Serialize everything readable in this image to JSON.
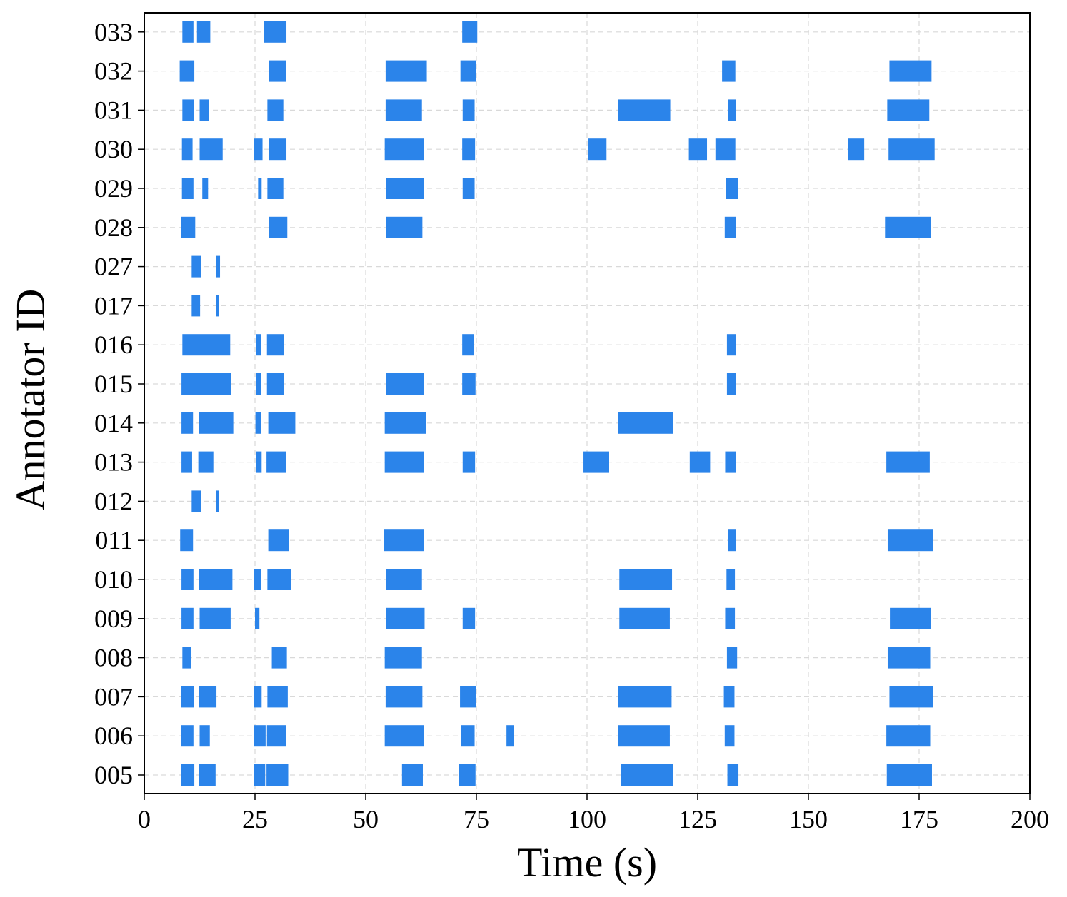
{
  "chart_data": {
    "type": "timeline",
    "xlabel": "Time (s)",
    "ylabel": "Annotator ID",
    "xlim": [
      0,
      200
    ],
    "xticks": [
      0,
      25,
      50,
      75,
      100,
      125,
      150,
      175,
      200
    ],
    "grid": true,
    "bar_color": "#2b84ea",
    "annotators": [
      {
        "id": "005",
        "segments": [
          [
            8.3,
            11.3
          ],
          [
            12.4,
            16.1
          ],
          [
            24.7,
            27.3
          ],
          [
            27.6,
            32.5
          ],
          [
            58.2,
            62.9
          ],
          [
            71.1,
            74.8
          ],
          [
            107.6,
            119.4
          ],
          [
            131.7,
            134.2
          ],
          [
            167.7,
            177.9
          ]
        ]
      },
      {
        "id": "006",
        "segments": [
          [
            8.3,
            11.1
          ],
          [
            12.5,
            14.8
          ],
          [
            24.7,
            27.4
          ],
          [
            27.7,
            32.0
          ],
          [
            54.3,
            63.1
          ],
          [
            71.5,
            74.6
          ],
          [
            81.8,
            83.5
          ],
          [
            107.0,
            118.7
          ],
          [
            131.1,
            133.3
          ],
          [
            167.6,
            177.5
          ]
        ]
      },
      {
        "id": "007",
        "segments": [
          [
            8.3,
            11.2
          ],
          [
            12.4,
            16.3
          ],
          [
            24.8,
            26.5
          ],
          [
            27.8,
            32.4
          ],
          [
            54.5,
            62.8
          ],
          [
            71.3,
            74.9
          ],
          [
            107.0,
            119.1
          ],
          [
            130.9,
            133.3
          ],
          [
            168.3,
            178.1
          ]
        ]
      },
      {
        "id": "008",
        "segments": [
          [
            8.6,
            10.6
          ],
          [
            28.8,
            32.2
          ],
          [
            54.3,
            62.7
          ],
          [
            131.6,
            133.9
          ],
          [
            167.9,
            177.5
          ]
        ]
      },
      {
        "id": "009",
        "segments": [
          [
            8.4,
            11.1
          ],
          [
            12.5,
            19.5
          ],
          [
            25.0,
            26.0
          ],
          [
            54.6,
            63.3
          ],
          [
            71.9,
            74.7
          ],
          [
            107.3,
            118.7
          ],
          [
            131.2,
            133.4
          ],
          [
            168.4,
            177.7
          ]
        ]
      },
      {
        "id": "010",
        "segments": [
          [
            8.4,
            11.1
          ],
          [
            12.3,
            19.9
          ],
          [
            24.7,
            26.3
          ],
          [
            27.8,
            33.2
          ],
          [
            54.6,
            62.7
          ],
          [
            107.3,
            119.2
          ],
          [
            131.5,
            133.4
          ]
        ]
      },
      {
        "id": "011",
        "segments": [
          [
            8.1,
            11.0
          ],
          [
            28.0,
            32.6
          ],
          [
            54.1,
            63.2
          ],
          [
            131.8,
            133.6
          ],
          [
            167.9,
            178.1
          ]
        ]
      },
      {
        "id": "012",
        "segments": [
          [
            10.7,
            12.8
          ],
          [
            16.2,
            16.9
          ]
        ]
      },
      {
        "id": "013",
        "segments": [
          [
            8.4,
            10.8
          ],
          [
            12.2,
            15.6
          ],
          [
            25.2,
            26.5
          ],
          [
            27.6,
            32.0
          ],
          [
            54.3,
            63.1
          ],
          [
            71.9,
            74.7
          ],
          [
            99.2,
            105.0
          ],
          [
            123.2,
            127.8
          ],
          [
            131.2,
            133.6
          ],
          [
            167.6,
            177.4
          ]
        ]
      },
      {
        "id": "014",
        "segments": [
          [
            8.4,
            11.0
          ],
          [
            12.4,
            20.1
          ],
          [
            25.1,
            26.3
          ],
          [
            28.0,
            34.1
          ],
          [
            54.3,
            63.6
          ],
          [
            107.0,
            119.4
          ]
        ]
      },
      {
        "id": "015",
        "segments": [
          [
            8.4,
            19.6
          ],
          [
            25.2,
            26.3
          ],
          [
            27.7,
            31.6
          ],
          [
            54.6,
            63.1
          ],
          [
            71.8,
            74.8
          ],
          [
            131.6,
            133.7
          ]
        ]
      },
      {
        "id": "016",
        "segments": [
          [
            8.6,
            19.4
          ],
          [
            25.2,
            26.3
          ],
          [
            27.7,
            31.5
          ],
          [
            71.8,
            74.5
          ],
          [
            131.6,
            133.6
          ]
        ]
      },
      {
        "id": "017",
        "segments": [
          [
            10.7,
            12.6
          ],
          [
            16.2,
            16.9
          ]
        ]
      },
      {
        "id": "027",
        "segments": [
          [
            10.7,
            12.8
          ],
          [
            16.2,
            17.1
          ]
        ]
      },
      {
        "id": "028",
        "segments": [
          [
            8.3,
            11.5
          ],
          [
            28.2,
            32.3
          ],
          [
            54.6,
            62.8
          ],
          [
            131.1,
            133.6
          ],
          [
            167.3,
            177.7
          ]
        ]
      },
      {
        "id": "029",
        "segments": [
          [
            8.5,
            11.1
          ],
          [
            13.1,
            14.4
          ],
          [
            25.7,
            26.5
          ],
          [
            27.8,
            31.4
          ],
          [
            54.6,
            63.1
          ],
          [
            71.9,
            74.6
          ],
          [
            131.4,
            134.1
          ]
        ]
      },
      {
        "id": "030",
        "segments": [
          [
            8.5,
            10.9
          ],
          [
            12.5,
            17.7
          ],
          [
            24.8,
            26.7
          ],
          [
            28.1,
            32.1
          ],
          [
            54.3,
            63.1
          ],
          [
            71.8,
            74.7
          ],
          [
            100.2,
            104.4
          ],
          [
            123.0,
            127.1
          ],
          [
            129.0,
            133.5
          ],
          [
            158.9,
            162.6
          ],
          [
            168.1,
            178.5
          ]
        ]
      },
      {
        "id": "031",
        "segments": [
          [
            8.6,
            11.2
          ],
          [
            12.5,
            14.6
          ],
          [
            27.8,
            31.4
          ],
          [
            54.5,
            62.7
          ],
          [
            71.9,
            74.6
          ],
          [
            107.0,
            118.8
          ],
          [
            131.9,
            133.6
          ],
          [
            167.8,
            177.3
          ]
        ]
      },
      {
        "id": "032",
        "segments": [
          [
            8.0,
            11.3
          ],
          [
            28.1,
            32.0
          ],
          [
            54.5,
            63.8
          ],
          [
            71.4,
            74.9
          ],
          [
            130.5,
            133.5
          ],
          [
            168.3,
            177.8
          ]
        ]
      },
      {
        "id": "033",
        "segments": [
          [
            8.6,
            11.1
          ],
          [
            11.9,
            14.9
          ],
          [
            27.0,
            32.1
          ],
          [
            71.8,
            75.2
          ]
        ]
      }
    ]
  }
}
